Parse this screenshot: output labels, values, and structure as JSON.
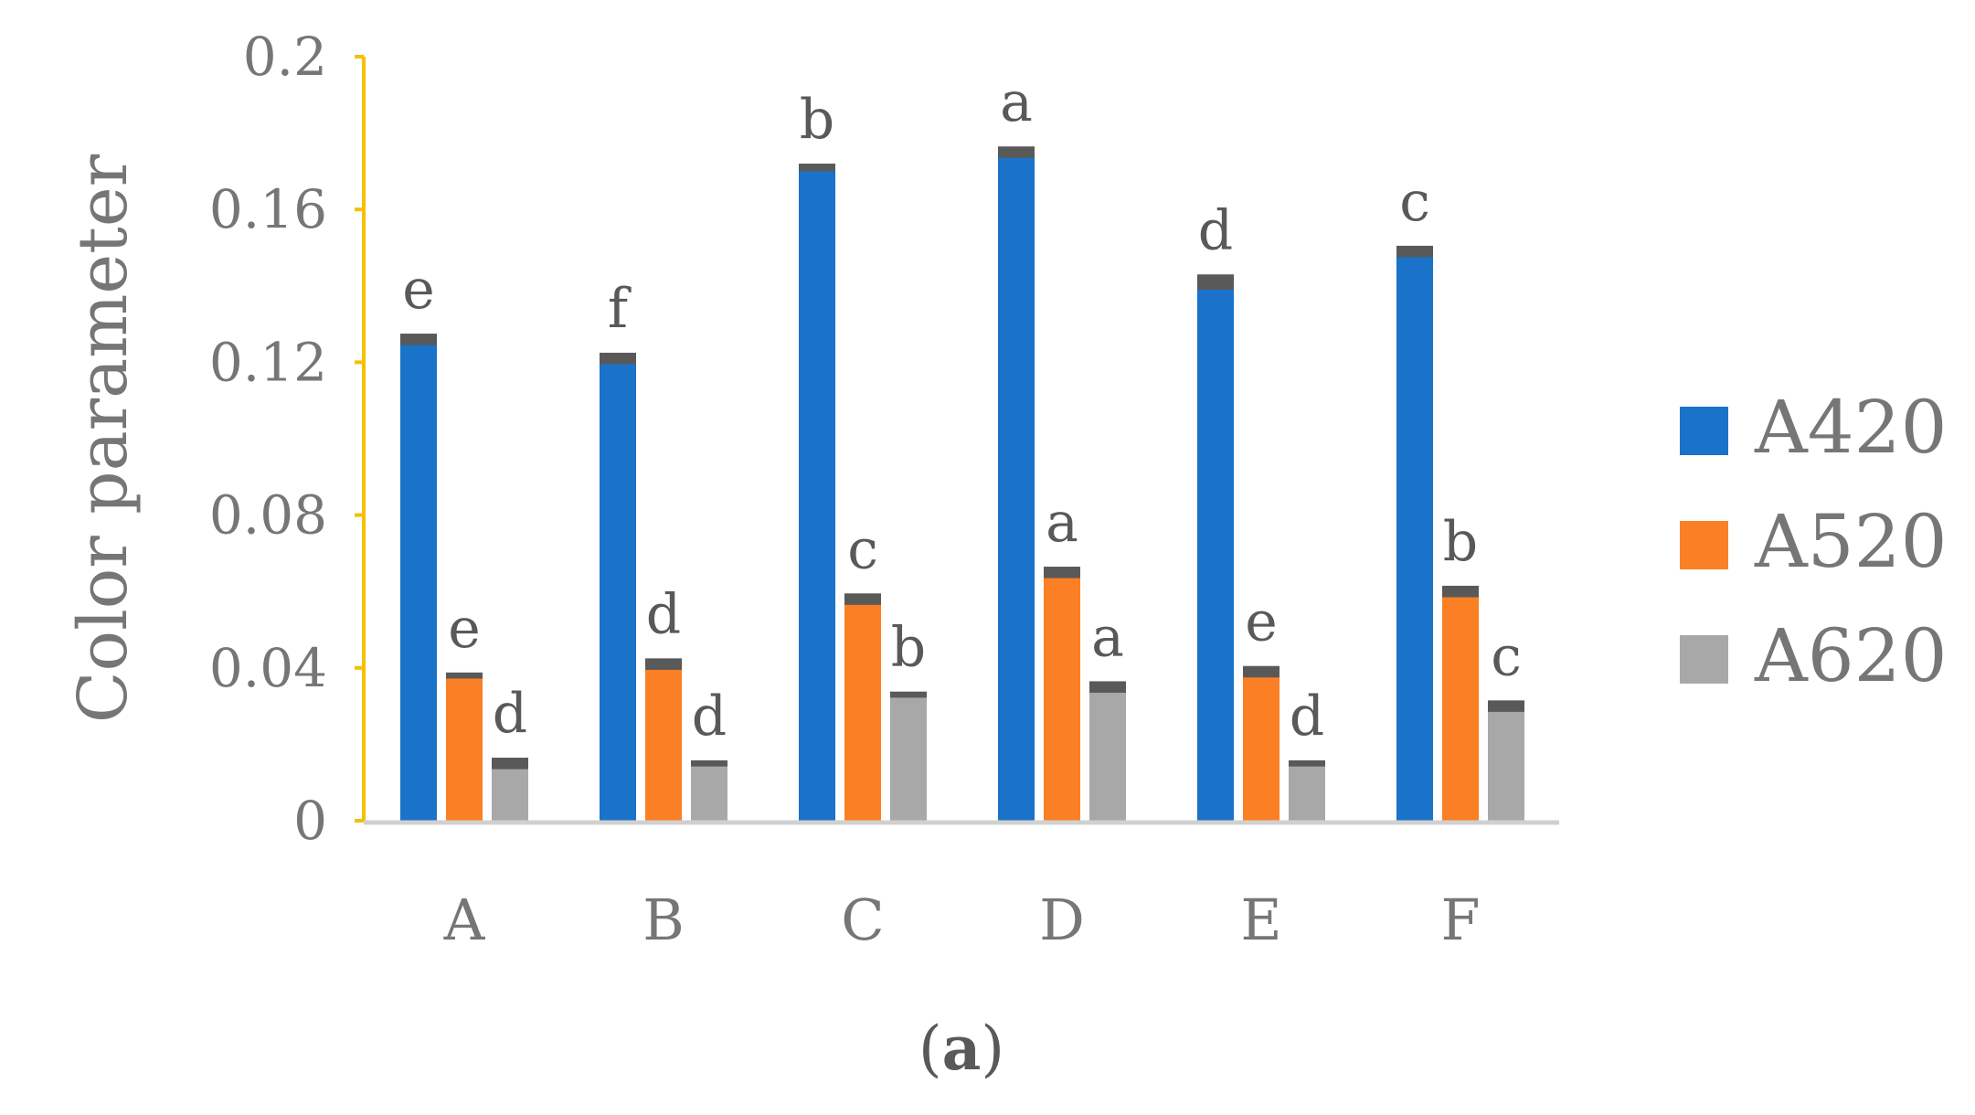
{
  "colors": {
    "A420": "#1a72c9",
    "A520": "#fb7f25",
    "A620": "#a8a8a8",
    "error_cap": "#595959",
    "y_axis": "#f5c000",
    "x_axis": "#d0d0d0",
    "text": "#767676"
  },
  "chart_data": {
    "type": "bar",
    "title": "",
    "xlabel": "",
    "ylabel": "Color parameter",
    "ylim": [
      0,
      0.2
    ],
    "yticks": [
      {
        "value": 0,
        "label": "0"
      },
      {
        "value": 0.04,
        "label": "0.04"
      },
      {
        "value": 0.08,
        "label": "0.08"
      },
      {
        "value": 0.12,
        "label": "0.12"
      },
      {
        "value": 0.16,
        "label": "0.16"
      },
      {
        "value": 0.2,
        "label": "0.2"
      }
    ],
    "grid": false,
    "legend_position": "right",
    "categories": [
      "A",
      "B",
      "C",
      "D",
      "E",
      "F"
    ],
    "series": [
      {
        "name": "A420",
        "values": [
          0.126,
          0.121,
          0.171,
          0.175,
          0.141,
          0.149
        ],
        "errors": [
          0.0015,
          0.0015,
          0.001,
          0.0015,
          0.002,
          0.0015
        ],
        "significance": [
          "e",
          "f",
          "b",
          "a",
          "d",
          "c"
        ]
      },
      {
        "name": "A520",
        "values": [
          0.038,
          0.041,
          0.058,
          0.065,
          0.039,
          0.06
        ],
        "errors": [
          0.0008,
          0.0015,
          0.0015,
          0.0015,
          0.0015,
          0.0015
        ],
        "significance": [
          "e",
          "d",
          "c",
          "a",
          "e",
          "b"
        ]
      },
      {
        "name": "A620",
        "values": [
          0.015,
          0.015,
          0.033,
          0.035,
          0.015,
          0.03
        ],
        "errors": [
          0.0015,
          0.0008,
          0.0008,
          0.0015,
          0.0008,
          0.0015
        ],
        "significance": [
          "d",
          "d",
          "b",
          "a",
          "d",
          "c"
        ]
      }
    ]
  },
  "caption": {
    "open": "(",
    "letter": "a",
    "close": ")"
  }
}
